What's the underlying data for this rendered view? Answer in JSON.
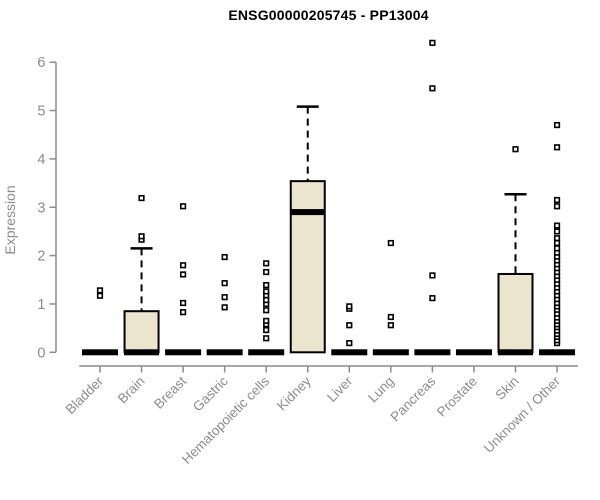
{
  "chart_data": {
    "type": "boxplot",
    "title": "ENSG00000205745 - PP13004",
    "ylabel": "Expression",
    "xlabel": "",
    "ylim": [
      0,
      6
    ],
    "yticks": [
      0,
      1,
      2,
      3,
      4,
      5,
      6
    ],
    "grid": false,
    "legend": "none",
    "colors": {
      "box_fill": "#ece5cd",
      "box_border": "#000000",
      "median": "#000000",
      "whisker": "#000000",
      "outlier": "#000000",
      "outlier_fill": "#ffffff",
      "axis": "#8c8c8c",
      "tick_label": "#8c8c8c",
      "title": "#000000",
      "background": "#ffffff"
    },
    "categories": [
      "Bladder",
      "Brain",
      "Breast",
      "Gastric",
      "Hematopoietic cells",
      "Kidney",
      "Liver",
      "Lung",
      "Pancreas",
      "Prostate",
      "Skin",
      "Unknown / Other"
    ],
    "boxes": [
      {
        "label": "Bladder",
        "q1": 0,
        "median": 0,
        "q3": 0,
        "whisker_low": 0,
        "whisker_high": 0,
        "outliers": [
          1.17,
          1.28
        ]
      },
      {
        "label": "Brain",
        "q1": 0,
        "median": 0,
        "q3": 0.85,
        "whisker_low": 0,
        "whisker_high": 2.15,
        "outliers": [
          2.33,
          2.4,
          3.19
        ]
      },
      {
        "label": "Breast",
        "q1": 0,
        "median": 0,
        "q3": 0,
        "whisker_low": 0,
        "whisker_high": 0,
        "outliers": [
          0.83,
          1.02,
          1.61,
          1.8,
          3.02
        ]
      },
      {
        "label": "Gastric",
        "q1": 0,
        "median": 0,
        "q3": 0,
        "whisker_low": 0,
        "whisker_high": 0,
        "outliers": [
          0.93,
          1.14,
          1.43,
          1.97
        ]
      },
      {
        "label": "Hematopoietic cells",
        "q1": 0,
        "median": 0,
        "q3": 0,
        "whisker_low": 0,
        "whisker_high": 0,
        "outliers": [
          0.29,
          0.46,
          0.58,
          0.65,
          0.87,
          1.0,
          1.08,
          1.18,
          1.26,
          1.39,
          1.66,
          1.84
        ]
      },
      {
        "label": "Kidney",
        "q1": 0,
        "median": 2.9,
        "q3": 3.54,
        "whisker_low": 0,
        "whisker_high": 5.08,
        "outliers": []
      },
      {
        "label": "Liver",
        "q1": 0,
        "median": 0,
        "q3": 0,
        "whisker_low": 0,
        "whisker_high": 0,
        "outliers": [
          0.19,
          0.56,
          0.9,
          0.95
        ]
      },
      {
        "label": "Lung",
        "q1": 0,
        "median": 0,
        "q3": 0,
        "whisker_low": 0,
        "whisker_high": 0,
        "outliers": [
          0.56,
          0.73,
          2.26
        ]
      },
      {
        "label": "Pancreas",
        "q1": 0,
        "median": 0,
        "q3": 0,
        "whisker_low": 0,
        "whisker_high": 0,
        "outliers": [
          1.12,
          1.59,
          5.46,
          6.4
        ]
      },
      {
        "label": "Prostate",
        "q1": 0,
        "median": 0,
        "q3": 0,
        "whisker_low": 0,
        "whisker_high": 0,
        "outliers": []
      },
      {
        "label": "Skin",
        "q1": 0,
        "median": 0,
        "q3": 1.62,
        "whisker_low": 0,
        "whisker_high": 3.27,
        "outliers": [
          4.2
        ]
      },
      {
        "label": "Unknown / Other",
        "q1": 0,
        "median": 0,
        "q3": 0,
        "whisker_low": 0,
        "whisker_high": 0,
        "outliers": [
          0.19,
          0.25,
          0.32,
          0.38,
          0.45,
          0.52,
          0.58,
          0.65,
          0.72,
          0.8,
          0.88,
          0.95,
          1.02,
          1.1,
          1.18,
          1.26,
          1.34,
          1.42,
          1.5,
          1.58,
          1.66,
          1.74,
          1.82,
          1.9,
          1.98,
          2.06,
          2.15,
          2.26,
          2.36,
          2.5,
          2.62,
          3.02,
          3.15,
          4.24,
          4.7
        ]
      }
    ]
  }
}
